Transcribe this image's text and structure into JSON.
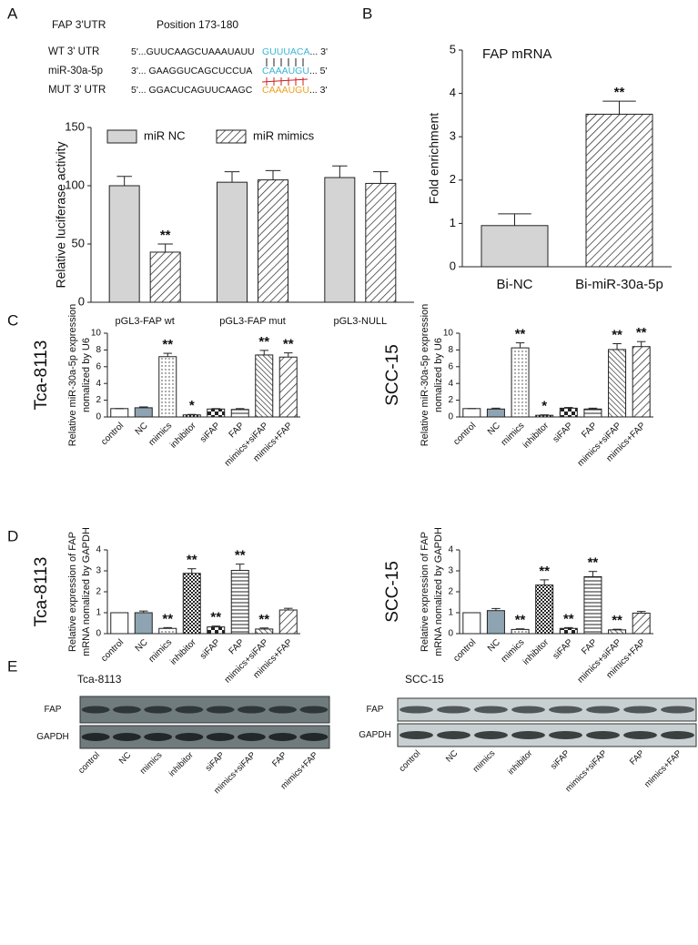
{
  "panel_labels": [
    "A",
    "B",
    "C",
    "D",
    "E"
  ],
  "sequences": {
    "title": "FAP 3'UTR",
    "position": "Position 173-180",
    "rows": [
      {
        "label": "WT 3' UTR",
        "prefix": "5'...GUUCAAGCUAAAUAUU",
        "site": "GUUUACA",
        "suffix": "...  3'",
        "site_color": "#3ab4d6"
      },
      {
        "label": "miR-30a-5p",
        "prefix": "3'... GAAGGUCAGCUCCUA",
        "site": "CAAAUGU",
        "suffix": "...  5'",
        "site_color": "#3ab4d6"
      },
      {
        "label": "MUT 3' UTR",
        "prefix": "5'... GGACUCAGUUCAAGC",
        "site": "CAAAUGU",
        "suffix": "...  3'",
        "site_color": "#f0a020"
      }
    ]
  },
  "chart_data": [
    {
      "type": "bar",
      "y_label": [
        "Relative luciferase activity"
      ],
      "categories": [
        "pGL3-FAP wt",
        "pGL3-FAP mut",
        "pGL3-NULL"
      ],
      "series": [
        {
          "name": "miR NC",
          "color": "#d4d4d4",
          "pattern": "solid",
          "values": [
            100,
            103,
            107
          ],
          "errors": [
            8,
            9,
            10
          ],
          "significance": [
            null,
            null,
            null
          ]
        },
        {
          "name": "miR mimics",
          "color": "#ffffff",
          "pattern": "diag-left",
          "values": [
            43,
            105,
            102
          ],
          "errors": [
            7,
            8,
            10
          ],
          "significance": [
            "**",
            null,
            null
          ]
        }
      ],
      "ylim": [
        0,
        150
      ],
      "yticks": [
        0,
        50,
        100,
        150
      ],
      "legend": "top"
    },
    {
      "type": "bar",
      "title": "FAP mRNA",
      "y_label": [
        "Fold enrichment"
      ],
      "categories": [
        "Bi-NC",
        "Bi-miR-30a-5p"
      ],
      "values": [
        0.95,
        3.52
      ],
      "errors": [
        0.27,
        0.3
      ],
      "significance": [
        null,
        "**"
      ],
      "colors": [
        "#d4d4d4",
        "#ffffff"
      ],
      "patterns": [
        "solid",
        "diag-left"
      ],
      "ylim": [
        0,
        5
      ],
      "yticks": [
        0,
        1,
        2,
        3,
        4,
        5
      ]
    },
    {
      "type": "bar",
      "side_label": "Tca-8113",
      "y_label": [
        "Relative miR-30a-5p expression",
        "nomalized by U6"
      ],
      "categories": [
        "control",
        "NC",
        "mimics",
        "inhibitor",
        "siFAP",
        "FAP",
        "mimics+siFAP",
        "mimics+FAP"
      ],
      "values": [
        1,
        1.1,
        7.2,
        0.25,
        0.95,
        0.9,
        7.4,
        7.15
      ],
      "errors": [
        0,
        0.1,
        0.4,
        0.05,
        0.05,
        0.1,
        0.55,
        0.5
      ],
      "significance": [
        null,
        null,
        "**",
        "*",
        null,
        null,
        "**",
        "**"
      ],
      "colors": [
        "#ffffff",
        "#8ea4b2",
        "#ffffff",
        "#ffffff",
        "#ffffff",
        "#ffffff",
        "#ffffff",
        "#ffffff"
      ],
      "patterns": [
        "solid",
        "solid",
        "dots",
        "checker-fine",
        "checker",
        "hlines",
        "diag-right",
        "diag-left"
      ],
      "ylim": [
        0,
        10
      ],
      "yticks": [
        0,
        2,
        4,
        6,
        8,
        10
      ]
    },
    {
      "type": "bar",
      "side_label": "SCC-15",
      "y_label": [
        "Relative miR-30a-5p expression",
        "nomalized by U6"
      ],
      "categories": [
        "control",
        "NC",
        "mimics",
        "inhibitor",
        "siFAP",
        "FAP",
        "mimics+siFAP",
        "mimics+FAP"
      ],
      "values": [
        1,
        0.95,
        8.25,
        0.2,
        1.05,
        0.95,
        8.05,
        8.4
      ],
      "errors": [
        0,
        0.1,
        0.6,
        0.05,
        0.08,
        0.1,
        0.7,
        0.6
      ],
      "significance": [
        null,
        null,
        "**",
        "*",
        null,
        null,
        "**",
        "**"
      ],
      "colors": [
        "#ffffff",
        "#8ea4b2",
        "#ffffff",
        "#ffffff",
        "#ffffff",
        "#ffffff",
        "#ffffff",
        "#ffffff"
      ],
      "patterns": [
        "solid",
        "solid",
        "dots",
        "checker-fine",
        "checker",
        "hlines",
        "diag-right",
        "diag-left"
      ],
      "ylim": [
        0,
        10
      ],
      "yticks": [
        0,
        2,
        4,
        6,
        8,
        10
      ]
    },
    {
      "type": "bar",
      "side_label": "Tca-8113",
      "y_label": [
        "Relative expression of FAP",
        "mRNA nomalized by GAPDH"
      ],
      "categories": [
        "control",
        "NC",
        "mimics",
        "inhibitor",
        "siFAP",
        "FAP",
        "mimics+siFAP",
        "mimics+FAP"
      ],
      "values": [
        1,
        1,
        0.25,
        2.88,
        0.32,
        3.02,
        0.22,
        1.13
      ],
      "errors": [
        0,
        0.08,
        0.04,
        0.22,
        0.04,
        0.3,
        0.05,
        0.08
      ],
      "significance": [
        null,
        null,
        "**",
        "**",
        "**",
        "**",
        "**",
        null
      ],
      "colors": [
        "#ffffff",
        "#8ea4b2",
        "#ffffff",
        "#ffffff",
        "#ffffff",
        "#ffffff",
        "#ffffff",
        "#ffffff"
      ],
      "patterns": [
        "solid",
        "solid",
        "dots",
        "checker-fine",
        "checker",
        "hlines",
        "diag-right",
        "diag-left"
      ],
      "ylim": [
        0,
        4
      ],
      "yticks": [
        0,
        1,
        2,
        3,
        4
      ]
    },
    {
      "type": "bar",
      "side_label": "SCC-15",
      "y_label": [
        "Relative expression of FAP",
        "mRNA nomalized by GAPDH"
      ],
      "categories": [
        "control",
        "NC",
        "mimics",
        "inhibitor",
        "siFAP",
        "FAP",
        "mimics+siFAP",
        "mimics+FAP"
      ],
      "values": [
        1,
        1.1,
        0.2,
        2.32,
        0.25,
        2.72,
        0.18,
        0.98
      ],
      "errors": [
        0,
        0.1,
        0.03,
        0.25,
        0.04,
        0.25,
        0.03,
        0.08
      ],
      "significance": [
        null,
        null,
        "**",
        "**",
        "**",
        "**",
        "**",
        null
      ],
      "colors": [
        "#ffffff",
        "#8ea4b2",
        "#ffffff",
        "#ffffff",
        "#ffffff",
        "#ffffff",
        "#ffffff",
        "#ffffff"
      ],
      "patterns": [
        "solid",
        "solid",
        "dots",
        "checker-fine",
        "checker",
        "hlines",
        "diag-right",
        "diag-left"
      ],
      "ylim": [
        0,
        4
      ],
      "yticks": [
        0,
        1,
        2,
        3,
        4
      ]
    }
  ],
  "blots": [
    {
      "title": "Tca-8113",
      "rows": [
        "FAP",
        "GAPDH"
      ],
      "lanes": [
        "control",
        "NC",
        "mimics",
        "inhibitor",
        "siFAP",
        "mimics+siFAP",
        "FAP",
        "mimics+FAP"
      ]
    },
    {
      "title": "SCC-15",
      "rows": [
        "FAP",
        "GAPDH"
      ],
      "lanes": [
        "control",
        "NC",
        "mimics",
        "inhibitor",
        "siFAP",
        "mimics+siFAP",
        "FAP",
        "mimics+FAP"
      ]
    }
  ]
}
